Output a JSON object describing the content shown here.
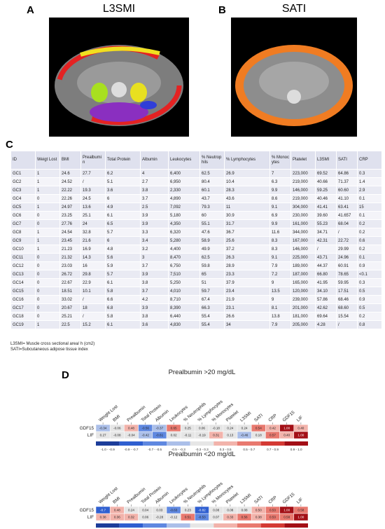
{
  "figure": {
    "panel_a": {
      "label": "A",
      "title": "L3SMI"
    },
    "panel_b": {
      "label": "B",
      "title": "SATI"
    },
    "panel_c": {
      "label": "C",
      "table": {
        "columns": [
          "ID",
          "Weigt Lost",
          "BMI",
          "Prealbumin",
          "Total Protein",
          "Albumin",
          "Leukocytes",
          "% Neutrophils",
          "% Lymphocytes",
          "% Monocytes",
          "Platelet",
          "L3SMI",
          "SATI",
          "CRP"
        ],
        "rows": [
          [
            "GC1",
            "1",
            "24.6",
            "27.7",
            "6.2",
            "4",
            "6,400",
            "62.5",
            "26.9",
            "7",
            "223,000",
            "69.52",
            "64.86",
            "0.3"
          ],
          [
            "GC2",
            "1",
            "24.52",
            "/",
            "5.1",
            "2.7",
            "6,950",
            "80.4",
            "10.4",
            "6.3",
            "219,000",
            "40.66",
            "71.37",
            "1.4"
          ],
          [
            "GC3",
            "1",
            "22.22",
            "19.3",
            "3.6",
            "3.8",
            "2,330",
            "60.1",
            "28.3",
            "9.9",
            "146,000",
            "59.25",
            "60.60",
            "2.9"
          ],
          [
            "GC4",
            "0",
            "22.26",
            "24.5",
            "6",
            "3.7",
            "4,890",
            "43.7",
            "43.6",
            "8.6",
            "219,000",
            "40.46",
            "41.10",
            "0.1"
          ],
          [
            "GC5",
            "1",
            "24.97",
            "13.6",
            "4.9",
            "2.5",
            "7,092",
            "79.3",
            "11",
            "9.1",
            "304,000",
            "41.41",
            "63.41",
            "15"
          ],
          [
            "GC6",
            "0",
            "23.25",
            "25.1",
            "6.1",
            "3.9",
            "5,180",
            "60",
            "30.9",
            "6.9",
            "230,000",
            "39.60",
            "41.657",
            "0.1"
          ],
          [
            "GC7",
            "0",
            "27.76",
            "24",
            "6.5",
            "3.9",
            "4,350",
            "55.1",
            "31.7",
            "9.9",
            "161,000",
            "55.23",
            "68.04",
            "0.2"
          ],
          [
            "GC8",
            "1",
            "24.54",
            "32.8",
            "5.7",
            "3.3",
            "6,320",
            "47.6",
            "36.7",
            "11.6",
            "344,000",
            "34.71",
            "/",
            "0.2"
          ],
          [
            "GC9",
            "1",
            "23.45",
            "21.6",
            "6",
            "3.4",
            "5,280",
            "58.9",
            "25.6",
            "8.3",
            "167,000",
            "42.31",
            "22.72",
            "0.6"
          ],
          [
            "GC10",
            "1",
            "21.23",
            "16.9",
            "4.8",
            "3.2",
            "4,400",
            "49.9",
            "37.2",
            "8.3",
            "146,000",
            "/",
            "29.99",
            "0.2"
          ],
          [
            "GC11",
            "0",
            "21.32",
            "14.3",
            "5.6",
            "3",
            "8,470",
            "62.5",
            "26.3",
            "9.1",
            "225,000",
            "43.71",
            "24.96",
            "0.1"
          ],
          [
            "GC12",
            "0",
            "23.03",
            "16",
            "5.9",
            "3.7",
            "6,750",
            "59.8",
            "28.9",
            "7.9",
            "189,000",
            "44.37",
            "60.91",
            "0.9"
          ],
          [
            "GC13",
            "0",
            "26.72",
            "29.8",
            "5.7",
            "3.9",
            "7,510",
            "65",
            "23.3",
            "7.2",
            "187,000",
            "66.80",
            "78.65",
            "<0.1"
          ],
          [
            "GC14",
            "0",
            "22.67",
            "22.9",
            "6.1",
            "3.8",
            "5,250",
            "51",
            "37.9",
            "9",
            "165,000",
            "41.95",
            "59.95",
            "0.3"
          ],
          [
            "GC15",
            "0",
            "18.51",
            "10.1",
            "5.8",
            "3.7",
            "4,010",
            "59.7",
            "23.4",
            "13.5",
            "120,000",
            "34.10",
            "17.51",
            "0.5"
          ],
          [
            "GC16",
            "0",
            "33.02",
            "/",
            "6.6",
            "4.2",
            "8,710",
            "67.4",
            "21.9",
            "9",
            "239,000",
            "57.86",
            "68.46",
            "0.9"
          ],
          [
            "GC17",
            "0",
            "20.67",
            "18",
            "6.8",
            "3.9",
            "8,390",
            "66.3",
            "23.1",
            "8.1",
            "201,000",
            "42.62",
            "68.60",
            "0.5"
          ],
          [
            "GC18",
            "0",
            "25.21",
            "/",
            "5.8",
            "3.8",
            "6,440",
            "55.4",
            "26.6",
            "13.8",
            "181,000",
            "69.64",
            "15.54",
            "0.2"
          ],
          [
            "GC19",
            "1",
            "22.5",
            "15.2",
            "6.1",
            "3.6",
            "4,830",
            "55.4",
            "34",
            "7.9",
            "205,000",
            "4.28",
            "/",
            "0.8"
          ]
        ]
      },
      "footnotes": [
        "L3SMI= Muscle cross sectional area/ h (cm2)",
        "SATI=Subcutaneous adipose tissue index"
      ]
    },
    "panel_d": {
      "label": "D",
      "legend": [
        {
          "range": [
            -1.0,
            -0.9
          ],
          "label": "-1.0 - -0.9",
          "color": "#1c3d9a"
        },
        {
          "range": [
            -0.9,
            -0.7
          ],
          "label": "-0.9 - -0.7",
          "color": "#2f5fd0"
        },
        {
          "range": [
            -0.7,
            -0.5
          ],
          "label": "-0.7 - -0.5",
          "color": "#5f88e0"
        },
        {
          "range": [
            -0.5,
            -0.3
          ],
          "label": "-0.5 - -0.3",
          "color": "#abbfe9"
        },
        {
          "range": [
            -0.3,
            0.3
          ],
          "label": "-0.3 - 0.3",
          "color": "#e6e6e6"
        },
        {
          "range": [
            0.3,
            0.5
          ],
          "label": "0.3 - 0.5",
          "color": "#f2b3ab"
        },
        {
          "range": [
            0.5,
            0.7
          ],
          "label": "0.5 - 0.7",
          "color": "#e8796f"
        },
        {
          "range": [
            0.7,
            0.9
          ],
          "label": "0.7 - 0.9",
          "color": "#d43a34"
        },
        {
          "range": [
            0.9,
            1.0
          ],
          "label": "0.9 - 1.0",
          "color": "#a30f16"
        }
      ],
      "heatmaps": [
        {
          "title": "Prealbumin >20 mg/dL",
          "columns": [
            "Weight Lost",
            "BMI",
            "Prealbumin",
            "Total Protein",
            "Albumin",
            "Leukocytes",
            "% Neutrophils",
            "% Lymphocytes",
            "% Monocytes",
            "Platelet",
            "L3SMI",
            "SATI",
            "CRP",
            "GDF15",
            "LIF"
          ],
          "rows": [
            {
              "name": "GDF15",
              "values": [
                -0.34,
                -0.06,
                0.48,
                -0.56,
                -0.37,
                0.65,
                0.25,
                0.06,
                -0.18,
                0.24,
                0.24,
                0.54,
                0.42,
                1.0,
                0.4
              ],
              "value_labels": [
                "-0.34",
                "-0.06",
                "0.48",
                "-0.56",
                "-0.37",
                "0.65",
                "0.25",
                "0.06",
                "-0.18",
                "0.24",
                "0.24",
                "0.54",
                "0.42",
                "1.00",
                "0.40"
              ]
            },
            {
              "name": "LIF",
              "values": [
                0.27,
                -0.08,
                -0.04,
                -0.42,
                -0.61,
                0.02,
                -0.11,
                -0.19,
                0.31,
                0.13,
                -0.46,
                0.18,
                0.57,
                0.4,
                1.0
              ],
              "value_labels": [
                "0.27",
                "-0.08",
                "-0.04",
                "-0.42",
                "-0.61",
                "0.02",
                "-0.11",
                "-0.19",
                "0.31",
                "0.13",
                "-0.46",
                "0.18",
                "0.57",
                "0.40",
                "1.00"
              ]
            }
          ]
        },
        {
          "title": "Prealbumin <20 mg/dL",
          "columns": [
            "Weight Lost",
            "BMI",
            "Prealbumin",
            "Total Protein",
            "Albumin",
            "Leukocytes",
            "% Neutrophils",
            "% Lymphocytes",
            "% Monocytes",
            "Platelet",
            "L3SMI",
            "SATI",
            "CRP",
            "GDF15",
            "LIF"
          ],
          "rows": [
            {
              "name": "GDF15",
              "values": [
                -0.7,
                0.48,
                0.24,
                0.04,
                0.03,
                -0.63,
                0.23,
                -0.82,
                0.08,
                0.08,
                0.08,
                0.5,
                0.53,
                1.0,
                0.58
              ],
              "value_labels": [
                "-0.7",
                "0.48",
                "0.24",
                "0.04",
                "0.03",
                "-0.63",
                "0.23",
                "-0.82",
                "0.08",
                "0.08",
                "0.08",
                "0.50",
                "0.53",
                "1.00",
                "0.58"
              ]
            },
            {
              "name": "LIF",
              "values": [
                0.38,
                0.36,
                0.32,
                0.06,
                -0.28,
                -0.12,
                0.51,
                -0.53,
                0.07,
                0.33,
                0.56,
                0.38,
                0.53,
                0.58,
                1.0
              ],
              "value_labels": [
                "0.38",
                "0.36",
                "0.32",
                "0.06",
                "-0.28",
                "-0.12",
                "0.51",
                "-0.53",
                "0.07",
                "0.33",
                "0.56",
                "0.38",
                "0.53",
                "0.58",
                "1.00"
              ]
            }
          ]
        }
      ]
    }
  }
}
